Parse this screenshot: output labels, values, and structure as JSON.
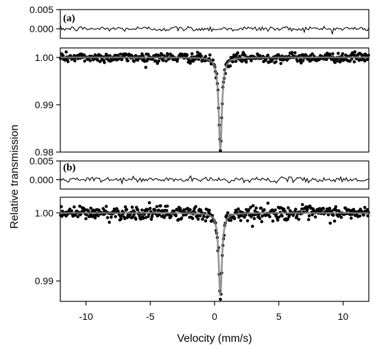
{
  "chart_data": {
    "type": "scatter",
    "xlabel": "Velocity (mm/s)",
    "ylabel": "Relative transmission",
    "xlim": [
      -12,
      12
    ],
    "xticks": [
      "-10",
      "-5",
      "0",
      "5",
      "10"
    ],
    "line_color": "#808080",
    "marker_color": "#000000",
    "panels": [
      {
        "label": "(a)",
        "residual": {
          "ylim": [
            -0.0025,
            0.005
          ],
          "ytick_labels": [
            "0.005",
            "0.000"
          ],
          "noise_amplitude": 0.00035
        },
        "spectrum": {
          "ylim": [
            0.98,
            1.002
          ],
          "ytick_labels": [
            "1.00",
            "0.99",
            "0.98"
          ],
          "baseline": 1.0,
          "line_center": 0.45,
          "line_depth": 0.0195,
          "line_hwhm": 0.15,
          "point_count": 500,
          "scatter": 0.0005
        }
      },
      {
        "label": "(b)",
        "residual": {
          "ylim": [
            -0.0025,
            0.005
          ],
          "ytick_labels": [
            "0.005",
            "0.000"
          ],
          "noise_amplitude": 0.00035
        },
        "spectrum": {
          "ylim": [
            0.987,
            1.0023
          ],
          "ytick_labels": [
            "1.00",
            "0.99"
          ],
          "baseline": 1.0,
          "line_center": 0.45,
          "line_depth": 0.0122,
          "line_hwhm": 0.15,
          "point_count": 500,
          "scatter": 0.0005
        }
      }
    ]
  }
}
